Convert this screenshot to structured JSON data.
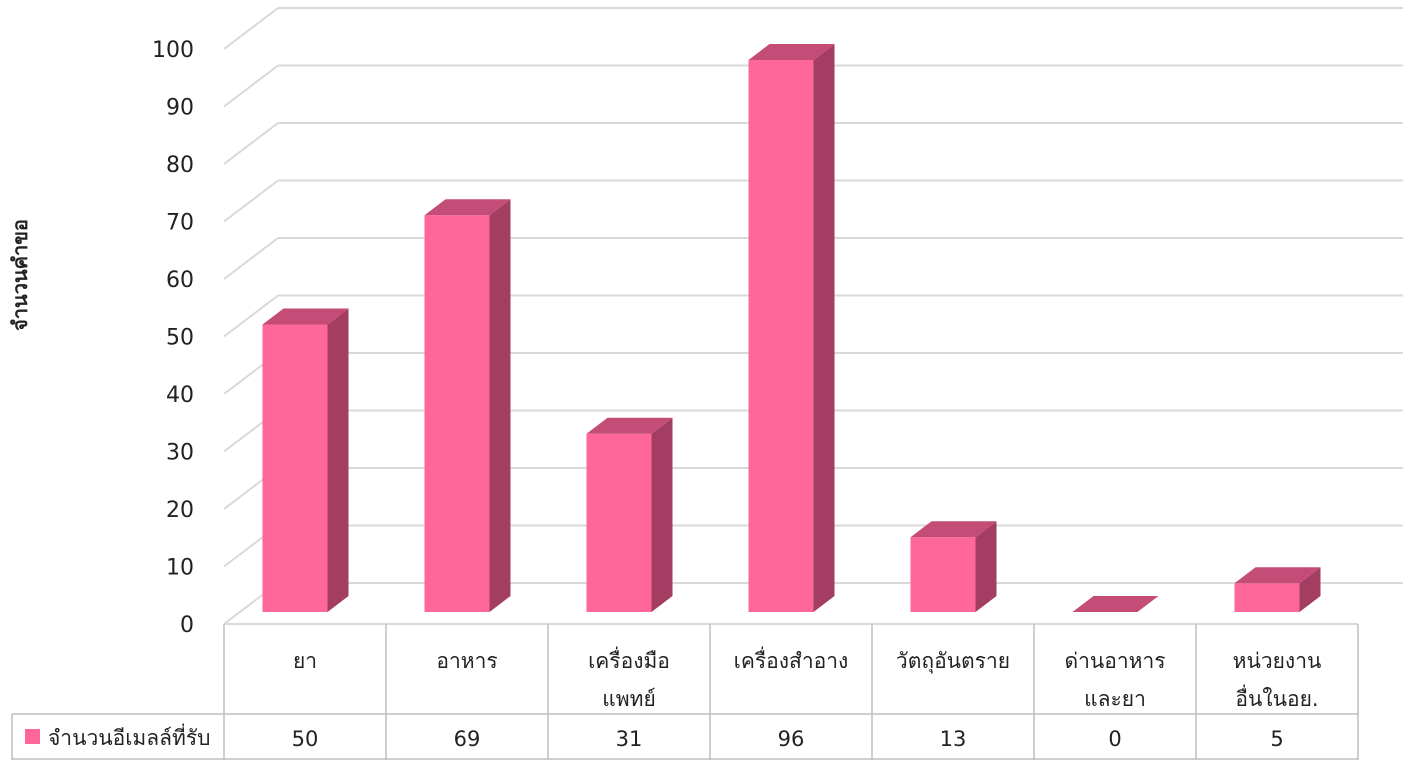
{
  "chart_data": {
    "type": "bar",
    "style": "3d-column",
    "ylabel": "จำนวนคำขอ",
    "ylim": [
      0,
      100
    ],
    "yticks": [
      0,
      10,
      20,
      30,
      40,
      50,
      60,
      70,
      80,
      90,
      100
    ],
    "grid": true,
    "categories": [
      [
        "ยา"
      ],
      [
        "อาหาร"
      ],
      [
        "เครื่องมือ",
        "แพทย์"
      ],
      [
        "เครื่องสำอาง"
      ],
      [
        "วัตถุอันตราย"
      ],
      [
        "ด่านอาหาร",
        "และยา"
      ],
      [
        "หน่วยงาน",
        "อื่นในอย."
      ]
    ],
    "series": [
      {
        "name": "จำนวนอีเมลล์ที่รับ",
        "values": [
          50,
          69,
          31,
          96,
          13,
          0,
          5
        ]
      }
    ],
    "legend_position": "table-left",
    "data_table": true,
    "colors": {
      "bar_front": "#FF6699",
      "bar_top": "#C44D78",
      "bar_side": "#A33D62",
      "grid": "#D9D9D9",
      "legend_key": "#FF6699"
    }
  }
}
